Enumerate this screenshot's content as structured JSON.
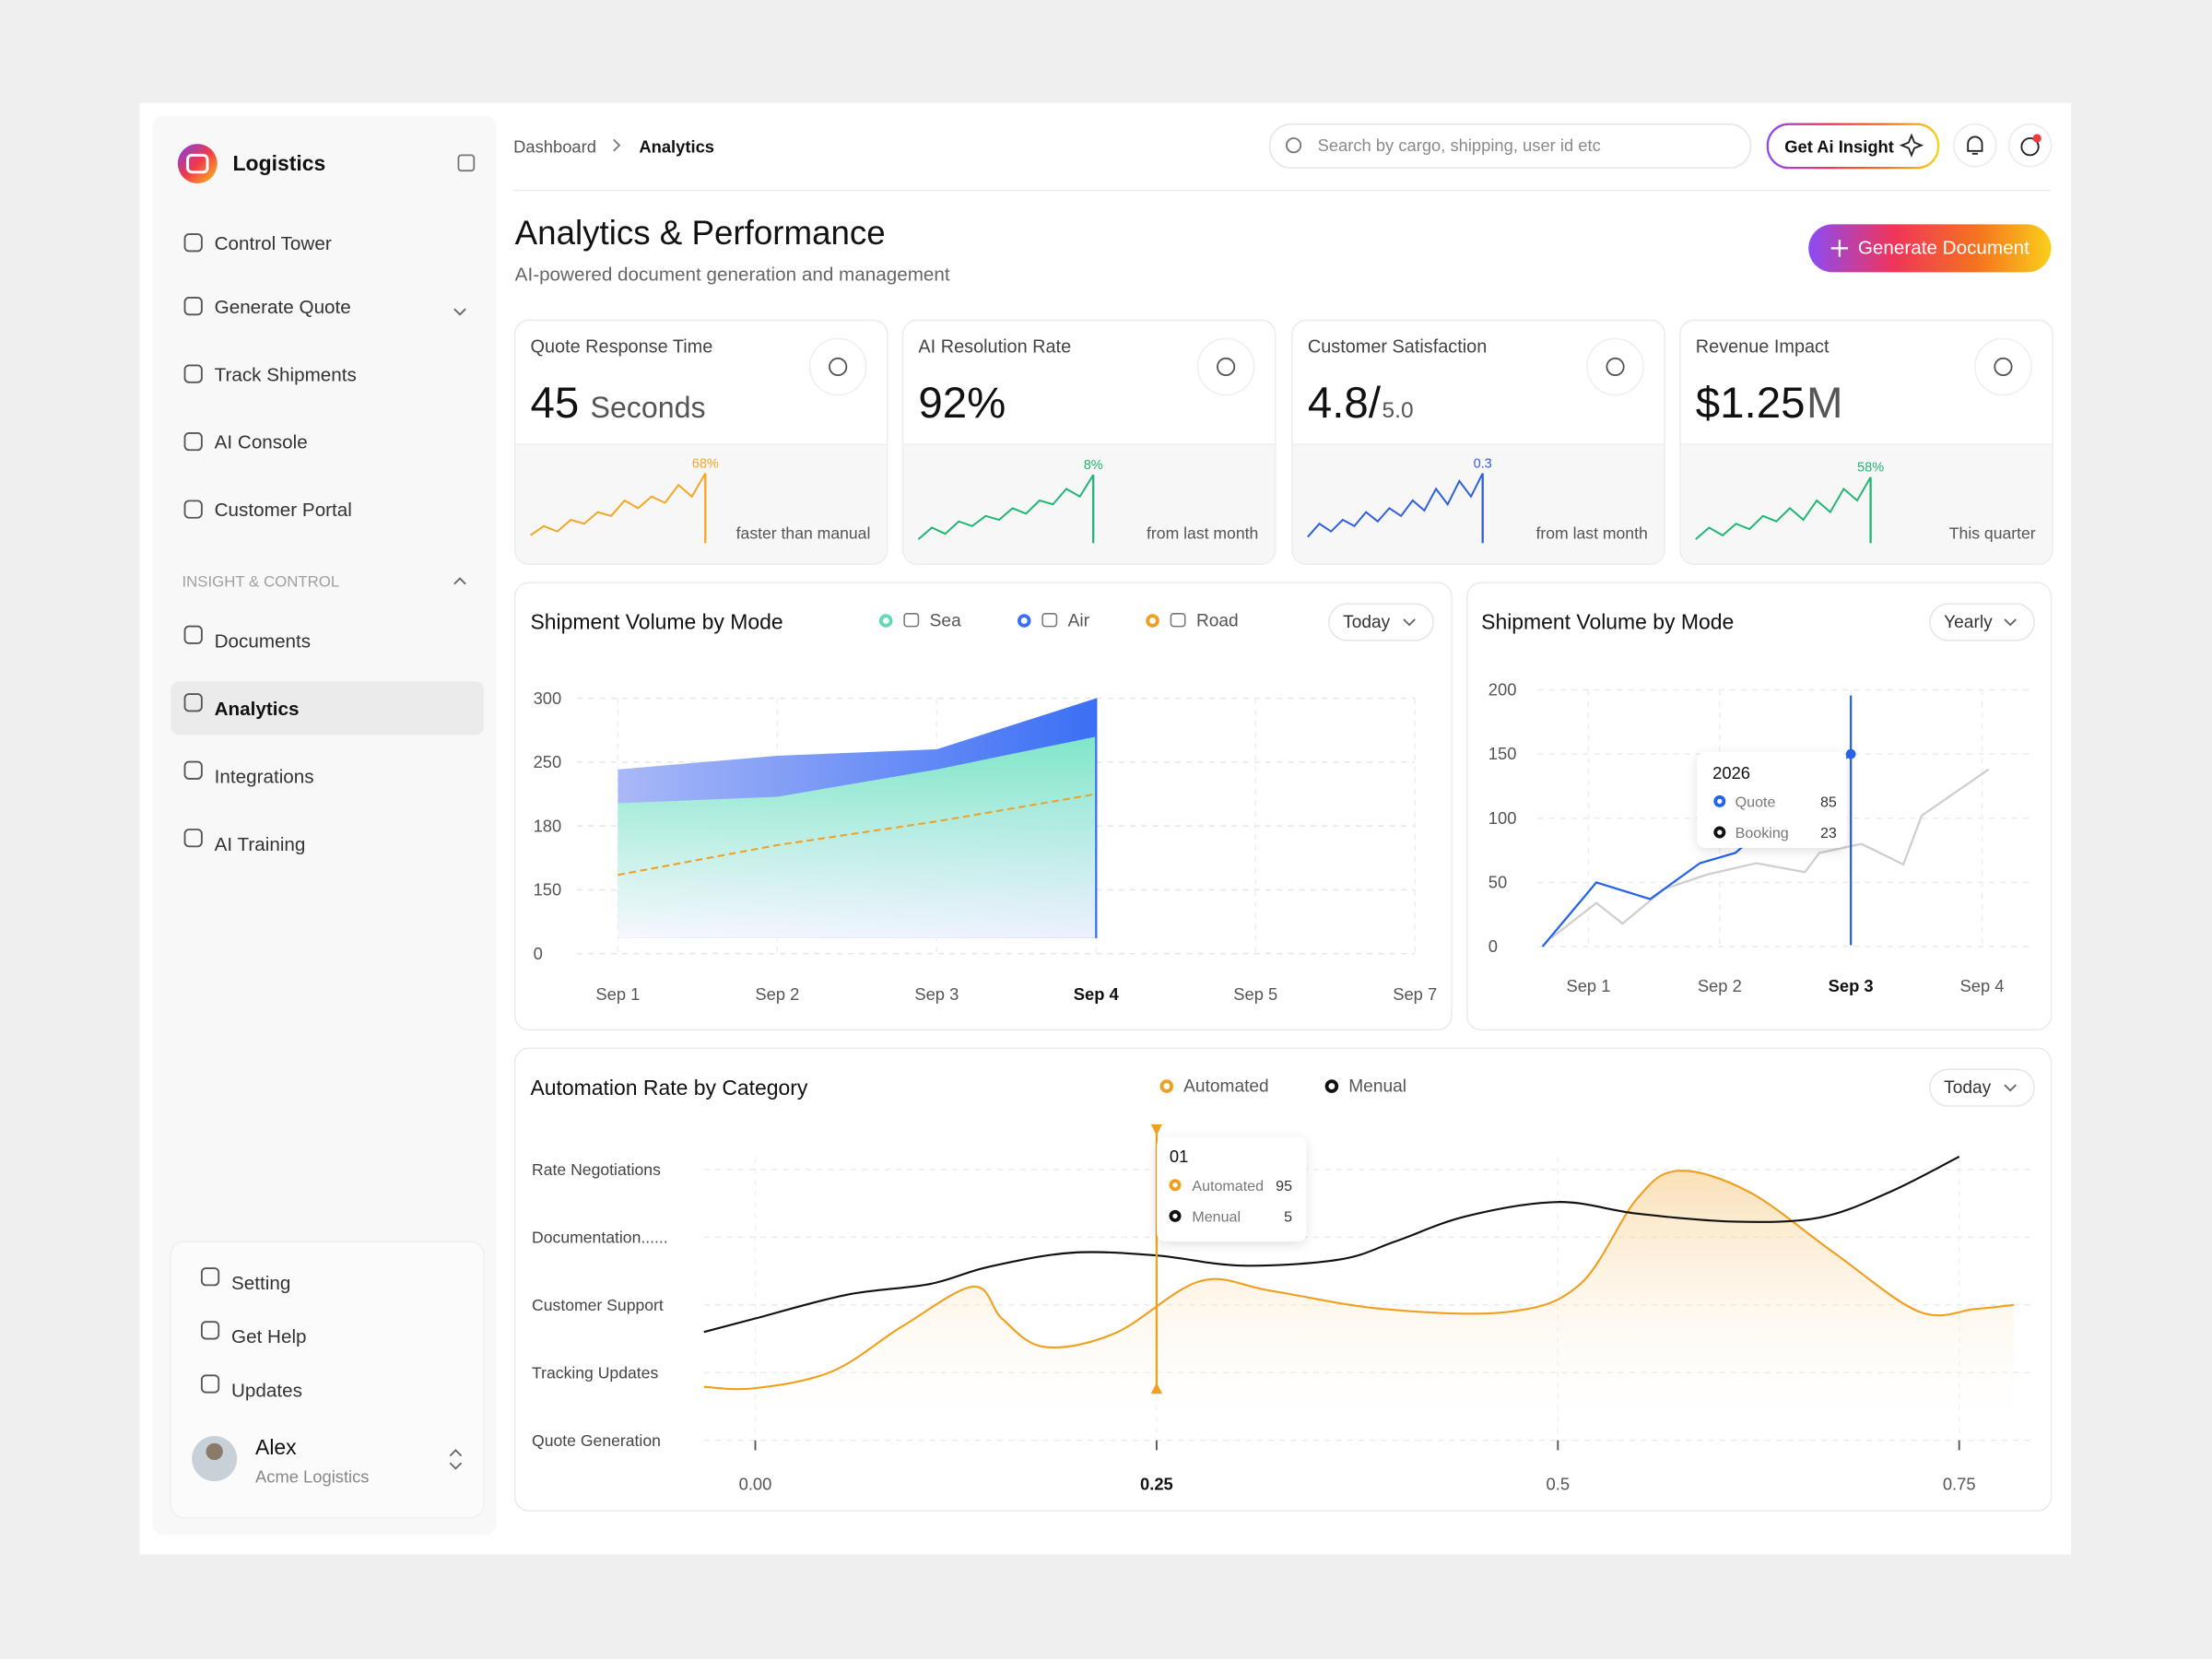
{
  "sidebar": {
    "brand": "Logistics",
    "nav": [
      "Control Tower",
      "Generate Quote",
      "Track Shipments",
      "AI Console",
      "Customer Portal"
    ],
    "section": "INSIGHT & CONTROL",
    "nav2": [
      "Documents",
      "Analytics",
      "Integrations",
      "AI Training"
    ],
    "footer": [
      "Setting",
      "Get Help",
      "Updates"
    ],
    "user": {
      "name": "Alex",
      "org": "Acme Logistics"
    }
  },
  "header": {
    "breadcrumb": [
      "Dashboard",
      "Analytics"
    ],
    "search_placeholder": "Search by cargo, shipping, user id etc",
    "insight_button": "Get Ai Insight"
  },
  "page": {
    "title": "Analytics & Performance",
    "subtitle": "AI-powered document generation and management",
    "action": "Generate Document"
  },
  "kpis": [
    {
      "label": "Quote Response Time",
      "value": "45",
      "unit": "Seconds",
      "badge": "68%",
      "note": "faster than manual",
      "color": "#f5a623",
      "spark": [
        10,
        22,
        15,
        30,
        25,
        40,
        35,
        55,
        45,
        60,
        52,
        75,
        60,
        90
      ]
    },
    {
      "label": "AI Resolution Rate",
      "value": "92%",
      "badge": "8%",
      "note": "from last month",
      "color": "#22b573",
      "spark": [
        5,
        20,
        12,
        28,
        22,
        35,
        30,
        45,
        38,
        55,
        50,
        70,
        60,
        88
      ]
    },
    {
      "label": "Customer Satisfaction",
      "value": "4.8/",
      "unit": "5.0",
      "badge": "0.3",
      "note": "from last month",
      "color": "#2f5fe0",
      "spark": [
        8,
        25,
        15,
        30,
        22,
        40,
        28,
        45,
        35,
        55,
        42,
        70,
        50,
        80,
        60,
        90
      ]
    },
    {
      "label": "Revenue Impact",
      "value": "$1.25",
      "unit": "M",
      "badge": "58%",
      "note": "This quarter",
      "color": "#22b573",
      "spark": [
        5,
        20,
        10,
        25,
        18,
        35,
        28,
        45,
        30,
        55,
        40,
        70,
        55,
        85
      ]
    }
  ],
  "charts": [
    {
      "title": "Shipment Volume by Mode",
      "period": "Today",
      "categories": [
        "Sep 1",
        "Sep 2",
        "Sep 3",
        "Sep 4",
        "Sep 5",
        "Sep 7"
      ],
      "ylim": [
        0,
        300
      ],
      "yticks": [
        0,
        150,
        180,
        250,
        300
      ],
      "series": [
        {
          "name": "Sea",
          "color": "#5fd9b8",
          "values": [
            205,
            212,
            242,
            270,
            null,
            null
          ]
        },
        {
          "name": "Air",
          "color": "#3b6ff5",
          "values": [
            242,
            255,
            260,
            300,
            null,
            null
          ]
        },
        {
          "name": "Road",
          "color": "#f0a020",
          "values": [
            157,
            171,
            185,
            215,
            null,
            null
          ]
        }
      ]
    },
    {
      "title": "Shipment Volume by Mode",
      "period": "Yearly",
      "xlim": [
        0.6,
        4.4
      ],
      "xticks": [
        {
          "value": 1,
          "label": "Sep 1"
        },
        {
          "value": 2,
          "label": "Sep 2"
        },
        {
          "value": 3,
          "label": "Sep 3"
        },
        {
          "value": 4,
          "label": "Sep 4"
        }
      ],
      "ylim": [
        0,
        200
      ],
      "yticks": [
        0,
        50,
        100,
        150,
        200
      ],
      "series": [
        {
          "name": "Quote",
          "color": "#2563eb",
          "x": [
            0.65,
            1.06,
            1.47,
            1.85,
            2.12,
            3.0
          ],
          "values": [
            0,
            50,
            37,
            65,
            73,
            150
          ]
        },
        {
          "name": "Booking",
          "color": "#cfcfcf",
          "x": [
            0.72,
            1.06,
            1.26,
            1.58,
            1.9,
            2.28,
            2.65,
            2.76,
            3.08,
            3.4,
            3.54,
            4.05
          ],
          "values": [
            7,
            34,
            18,
            45,
            56,
            65,
            58,
            73,
            80,
            64,
            102,
            138
          ]
        }
      ],
      "tooltip": {
        "title": "2026",
        "values": [
          85,
          23
        ]
      }
    },
    {
      "title": "Automation Rate by Category",
      "period": "Today",
      "xlim": [
        -0.032,
        0.795
      ],
      "xticks": [
        {
          "value": 0,
          "label": "0.00"
        },
        0.25,
        0.5,
        0.75
      ],
      "ylim": [
        0,
        4
      ],
      "yticks": [
        {
          "value": 0,
          "label": "Quote Generation"
        },
        {
          "value": 1,
          "label": "Tracking Updates"
        },
        {
          "value": 2,
          "label": "Customer Support"
        },
        {
          "value": 3,
          "label": "Documentation......"
        },
        {
          "value": 4,
          "label": "Rate Negotiations"
        }
      ],
      "series": [
        {
          "name": "Automated",
          "color": "#f0a020",
          "x": [
            -0.032,
            0,
            0.048,
            0.092,
            0.136,
            0.154,
            0.18,
            0.224,
            0.277,
            0.321,
            0.391,
            0.47,
            0.514,
            0.549,
            0.575,
            0.619,
            0.672,
            0.725,
            0.76,
            0.784
          ],
          "values": [
            0.79,
            0.77,
            1.02,
            1.69,
            2.27,
            1.79,
            1.38,
            1.58,
            2.35,
            2.21,
            1.94,
            1.9,
            2.31,
            3.56,
            3.98,
            3.67,
            2.77,
            1.9,
            1.94,
            2.0
          ]
        },
        {
          "name": "Menual",
          "color": "#111111",
          "x": [
            -0.032,
            0,
            0.057,
            0.109,
            0.145,
            0.197,
            0.25,
            0.303,
            0.364,
            0.399,
            0.443,
            0.5,
            0.549,
            0.61,
            0.663,
            0.707,
            0.75
          ],
          "values": [
            1.6,
            1.8,
            2.15,
            2.31,
            2.56,
            2.77,
            2.73,
            2.58,
            2.67,
            2.94,
            3.31,
            3.52,
            3.35,
            3.23,
            3.29,
            3.67,
            4.19
          ]
        }
      ],
      "tooltip": {
        "title": "01",
        "values": [
          95,
          5
        ]
      }
    }
  ]
}
